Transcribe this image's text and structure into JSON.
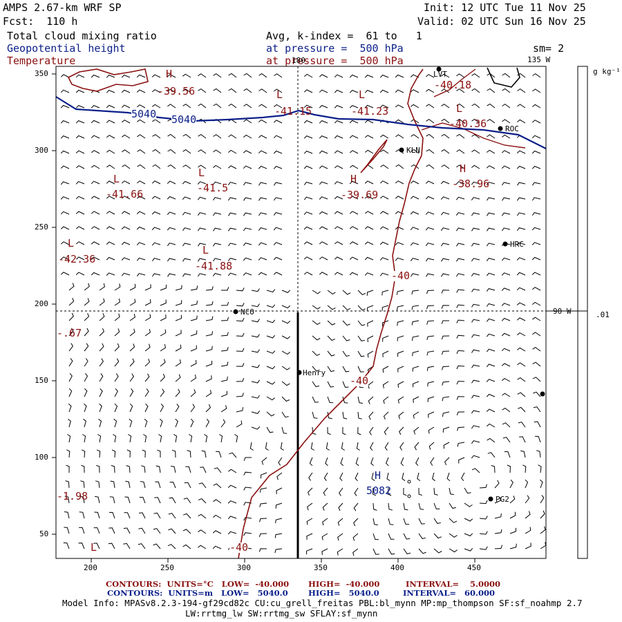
{
  "header": {
    "model": "AMPS 2.67-km WRF SP",
    "fcst": "Fcst:  110 h",
    "init": "Init: 12 UTC Tue 11 Nov 25",
    "valid": "Valid: 02 UTC Sun 16 Nov 25",
    "field1": "Total cloud mixing ratio",
    "field2": "Geopotential height",
    "field3": "Temperature",
    "avg": "Avg, k-index =  61 to   1",
    "pressure1": "at pressure =  500 hPa",
    "pressure2": "at pressure =  500 hPa",
    "sm": "sm= 2"
  },
  "map": {
    "lon_labels": [
      "180",
      "135 W",
      "90 W"
    ],
    "colorbar_unit": "g kg⁻¹",
    "colorbar_tick": ".01",
    "x_ticks": [
      "200",
      "250",
      "300",
      "350",
      "400",
      "450"
    ],
    "y_ticks": [
      "350",
      "300",
      "250",
      "200",
      "150",
      "100",
      "50"
    ],
    "stations": [
      "LVT",
      "ROC",
      "KLN",
      "HRC",
      "NCO",
      "Henry",
      "PG2"
    ],
    "height_contour_labels": [
      "5040",
      "5040"
    ],
    "temp_contour_labels": [
      "-40",
      "-40",
      "-40"
    ],
    "extrema": [
      {
        "type": "H",
        "value": "-39.56",
        "kind": "temp"
      },
      {
        "type": "L",
        "value": "-41.15",
        "kind": "temp"
      },
      {
        "type": "L",
        "value": "-41.23",
        "kind": "temp"
      },
      {
        "type": "L",
        "value": "-40.18",
        "kind": "temp"
      },
      {
        "type": "L",
        "value": "-40.36",
        "kind": "temp"
      },
      {
        "type": "L",
        "value": "-41.66",
        "kind": "temp"
      },
      {
        "type": "L",
        "value": "-41.5",
        "kind": "temp"
      },
      {
        "type": "H",
        "value": "-39.69",
        "kind": "temp"
      },
      {
        "type": "H",
        "value": "-38.96",
        "kind": "temp"
      },
      {
        "type": "L",
        "value": "-42.36",
        "kind": "temp"
      },
      {
        "type": "L",
        "value": "-41.88",
        "kind": "temp"
      },
      {
        "type": "",
        "value": "-.67",
        "kind": "temp"
      },
      {
        "type": "",
        "value": "-1.98",
        "kind": "temp"
      },
      {
        "type": "L",
        "value": "",
        "kind": "temp"
      },
      {
        "type": "H",
        "value": "5082",
        "kind": "height"
      }
    ]
  },
  "footer": {
    "c1": "CONTOURS:  UNITS=°C   LOW=  -40.000",
    "c1b": "HIGH=  -40.000",
    "c1c": "INTERVAL=    5.0000",
    "c2": "CONTOURS:  UNITS=m   LOW=   5040.0",
    "c2b": "HIGH=   5040.0",
    "c2c": "INTERVAL=   60.000",
    "info": "Model Info: MPASv8.2.3-194-gf29cd82c CU:cu_grell_freitas PBL:bl_mynn MP:mp_thompson SF:sf_noahmp 2.7",
    "info2": "LW:rrtmg_lw SW:rrtmg_sw SFLAY:sf_mynn"
  },
  "colors": {
    "temp": "#8b1010",
    "height": "#0b1f8a"
  }
}
